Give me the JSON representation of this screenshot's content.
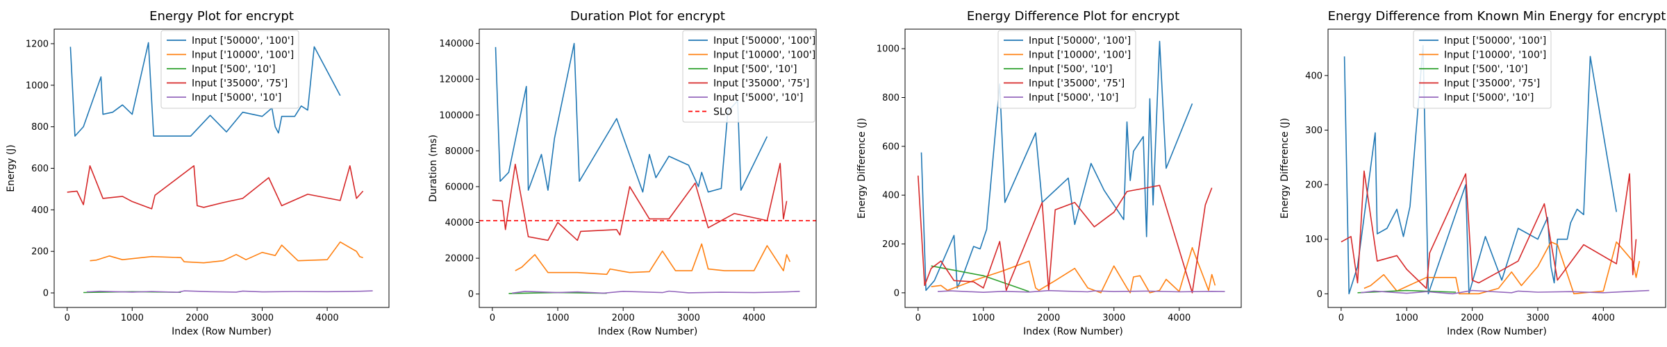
{
  "colors": {
    "s0": "#1f77b4",
    "s1": "#ff7f0e",
    "s2": "#2ca02c",
    "s3": "#d62728",
    "s4": "#9467bd",
    "slo": "#ff0000"
  },
  "chart_data": [
    {
      "type": "line",
      "title": "Energy Plot for encrypt",
      "xlabel": "Index (Row Number)",
      "ylabel": "Energy (J)",
      "xlim": [
        -200,
        4950
      ],
      "ylim": [
        -70,
        1270
      ],
      "xticks": [
        0,
        1000,
        2000,
        3000,
        4000
      ],
      "yticks": [
        0,
        200,
        400,
        600,
        800,
        1000,
        1200
      ],
      "grid": false,
      "legend": "upper-center",
      "series": [
        {
          "name": "Input ['50000', '100']",
          "color_key": "s0",
          "x": [
            50,
            120,
            250,
            520,
            550,
            700,
            850,
            1000,
            1250,
            1330,
            1900,
            2200,
            2450,
            2700,
            3000,
            3150,
            3200,
            3250,
            3300,
            3500,
            3600,
            3700,
            3800,
            4200
          ],
          "y": [
            1185,
            755,
            800,
            1040,
            860,
            870,
            905,
            860,
            1205,
            755,
            755,
            855,
            775,
            870,
            850,
            890,
            800,
            770,
            850,
            850,
            900,
            880,
            1185,
            950
          ]
        },
        {
          "name": "Input ['10000', '100']",
          "color_key": "s1",
          "x": [
            350,
            450,
            650,
            850,
            1300,
            1750,
            1800,
            2100,
            2400,
            2600,
            2750,
            3000,
            3200,
            3300,
            3550,
            4000,
            4200,
            4450,
            4500,
            4550
          ],
          "y": [
            155,
            158,
            178,
            160,
            175,
            170,
            150,
            145,
            155,
            185,
            160,
            195,
            180,
            230,
            155,
            160,
            245,
            200,
            175,
            170
          ]
        },
        {
          "name": "Input ['500', '10']",
          "color_key": "s2",
          "x": [
            250,
            1000,
            1750
          ],
          "y": [
            2,
            6,
            3
          ]
        },
        {
          "name": "Input ['35000', '75']",
          "color_key": "s3",
          "x": [
            0,
            150,
            250,
            350,
            550,
            850,
            1000,
            1300,
            1350,
            1950,
            2000,
            2100,
            2400,
            2700,
            3100,
            3300,
            3700,
            4200,
            4350,
            4450,
            4550
          ],
          "y": [
            485,
            490,
            425,
            612,
            455,
            465,
            440,
            405,
            470,
            612,
            420,
            412,
            435,
            455,
            555,
            420,
            475,
            445,
            612,
            455,
            490
          ]
        },
        {
          "name": "Input ['5000', '10']",
          "color_key": "s4",
          "x": [
            300,
            500,
            1000,
            1300,
            1700,
            1800,
            2200,
            2600,
            2700,
            3000,
            3500,
            4000,
            4500,
            4700
          ],
          "y": [
            5,
            8,
            4,
            7,
            3,
            10,
            6,
            4,
            9,
            5,
            7,
            6,
            8,
            10
          ]
        }
      ]
    },
    {
      "type": "line",
      "title": "Duration Plot for encrypt",
      "xlabel": "Index (Row Number)",
      "ylabel": "Duration (ms)",
      "xlim": [
        -200,
        4950
      ],
      "ylim": [
        -7500,
        148000
      ],
      "xticks": [
        0,
        1000,
        2000,
        3000,
        4000
      ],
      "yticks": [
        0,
        20000,
        40000,
        60000,
        80000,
        100000,
        120000,
        140000
      ],
      "grid": false,
      "legend": "upper-right",
      "slo": {
        "label": "SLO",
        "value": 41000
      },
      "series": [
        {
          "name": "Input ['50000', '100']",
          "color_key": "s0",
          "x": [
            50,
            120,
            250,
            520,
            550,
            750,
            850,
            950,
            1250,
            1330,
            1900,
            2300,
            2400,
            2500,
            2700,
            3000,
            3150,
            3200,
            3300,
            3500,
            3600,
            3750,
            3800,
            4200
          ],
          "y": [
            138000,
            63000,
            68000,
            116000,
            58000,
            78000,
            58000,
            87000,
            140000,
            63000,
            98000,
            57000,
            78000,
            65000,
            77000,
            72000,
            60000,
            68000,
            57000,
            59000,
            102000,
            108000,
            58000,
            88000
          ]
        },
        {
          "name": "Input ['10000', '100']",
          "color_key": "s1",
          "x": [
            350,
            450,
            650,
            850,
            1300,
            1750,
            1800,
            2100,
            2400,
            2600,
            2800,
            3050,
            3200,
            3300,
            3550,
            4000,
            4200,
            4450,
            4500,
            4550
          ],
          "y": [
            13000,
            15000,
            22000,
            12000,
            12000,
            11000,
            14000,
            12000,
            12500,
            24000,
            13000,
            13000,
            28000,
            14000,
            13000,
            13000,
            27000,
            13000,
            22000,
            18000
          ]
        },
        {
          "name": "Input ['500', '10']",
          "color_key": "s2",
          "x": [
            250,
            1000,
            1750
          ],
          "y": [
            300,
            800,
            400
          ]
        },
        {
          "name": "Input ['35000', '75']",
          "color_key": "s3",
          "x": [
            0,
            150,
            200,
            350,
            550,
            850,
            1000,
            1300,
            1350,
            1900,
            1950,
            2100,
            2400,
            2700,
            3100,
            3300,
            3700,
            4200,
            4400,
            4450,
            4500
          ],
          "y": [
            52500,
            52000,
            36000,
            72500,
            32000,
            30000,
            40000,
            30000,
            35000,
            36000,
            33000,
            60000,
            42000,
            42000,
            62000,
            37000,
            45000,
            41000,
            73000,
            42000,
            52000
          ]
        },
        {
          "name": "Input ['5000', '10']",
          "color_key": "s4",
          "x": [
            300,
            500,
            1000,
            1300,
            1700,
            2000,
            2600,
            2700,
            3000,
            3500,
            4000,
            4500,
            4700
          ],
          "y": [
            500,
            1500,
            800,
            1200,
            500,
            1500,
            800,
            1600,
            700,
            1000,
            800,
            1200,
            1500
          ]
        },
        {
          "name": "SLO",
          "color_key": "slo",
          "dashed": true,
          "x": [
            -200,
            4950
          ],
          "y": [
            41000,
            41000
          ]
        }
      ]
    },
    {
      "type": "line",
      "title": "Energy Difference Plot for encrypt",
      "xlabel": "Index (Row Number)",
      "ylabel": "Energy Difference (J)",
      "xlim": [
        -200,
        4950
      ],
      "ylim": [
        -60,
        1080
      ],
      "xticks": [
        0,
        1000,
        2000,
        3000,
        4000
      ],
      "yticks": [
        0,
        200,
        400,
        600,
        800,
        1000
      ],
      "grid": false,
      "legend": "upper-center",
      "series": [
        {
          "name": "Input ['50000', '100']",
          "color_key": "s0",
          "x": [
            50,
            120,
            250,
            550,
            600,
            700,
            850,
            950,
            1050,
            1250,
            1330,
            1800,
            1900,
            2300,
            2400,
            2650,
            2850,
            3150,
            3200,
            3250,
            3300,
            3450,
            3500,
            3550,
            3600,
            3700,
            3800,
            4200
          ],
          "y": [
            575,
            10,
            50,
            235,
            20,
            80,
            190,
            180,
            260,
            855,
            370,
            655,
            370,
            470,
            280,
            530,
            420,
            300,
            700,
            460,
            580,
            640,
            230,
            795,
            360,
            1030,
            510,
            775
          ]
        },
        {
          "name": "Input ['10000', '100']",
          "color_key": "s1",
          "x": [
            200,
            350,
            450,
            600,
            850,
            1300,
            1700,
            1800,
            1850,
            2100,
            2400,
            2600,
            2800,
            3000,
            3200,
            3250,
            3300,
            3400,
            3550,
            3700,
            3800,
            4000,
            4200,
            4450,
            4500,
            4550
          ],
          "y": [
            25,
            30,
            10,
            25,
            50,
            90,
            130,
            20,
            10,
            50,
            100,
            20,
            0,
            110,
            20,
            0,
            65,
            70,
            0,
            10,
            55,
            5,
            185,
            10,
            75,
            30
          ]
        },
        {
          "name": "Input ['500', '10']",
          "color_key": "s2",
          "x": [
            200,
            1000,
            1700
          ],
          "y": [
            110,
            70,
            5
          ]
        },
        {
          "name": "Input ['35000', '75']",
          "color_key": "s3",
          "x": [
            0,
            100,
            200,
            350,
            550,
            850,
            1000,
            1250,
            1350,
            1900,
            2000,
            2100,
            2400,
            2700,
            3000,
            3200,
            3700,
            4200,
            4400,
            4500
          ],
          "y": [
            480,
            30,
            100,
            130,
            50,
            45,
            20,
            210,
            10,
            370,
            10,
            340,
            370,
            270,
            330,
            415,
            440,
            0,
            360,
            430
          ]
        },
        {
          "name": "Input ['5000', '10']",
          "color_key": "s4",
          "x": [
            300,
            500,
            1000,
            1300,
            1700,
            2000,
            2600,
            2700,
            3000,
            3500,
            4000,
            4500,
            4700
          ],
          "y": [
            5,
            8,
            2,
            6,
            3,
            9,
            4,
            8,
            5,
            7,
            4,
            6,
            5
          ]
        }
      ]
    },
    {
      "type": "line",
      "title": "Energy Difference from Known Min Energy for encrypt",
      "xlabel": "Index (Row Number)",
      "ylabel": "Energy Difference (J)",
      "xlim": [
        -200,
        4950
      ],
      "ylim": [
        -25,
        485
      ],
      "xticks": [
        0,
        1000,
        2000,
        3000,
        4000
      ],
      "yticks": [
        0,
        100,
        200,
        300,
        400
      ],
      "grid": false,
      "legend": "upper-center",
      "series": [
        {
          "name": "Input ['50000', '100']",
          "color_key": "s0",
          "x": [
            50,
            120,
            250,
            520,
            550,
            700,
            850,
            950,
            1050,
            1250,
            1330,
            1900,
            1950,
            2200,
            2450,
            2700,
            3000,
            3150,
            3200,
            3250,
            3300,
            3450,
            3500,
            3600,
            3700,
            3800,
            4200
          ],
          "y": [
            435,
            0,
            50,
            295,
            110,
            120,
            155,
            105,
            160,
            455,
            0,
            200,
            0,
            105,
            25,
            120,
            100,
            140,
            50,
            20,
            100,
            100,
            130,
            155,
            145,
            435,
            150
          ]
        },
        {
          "name": "Input ['10000', '100']",
          "color_key": "s1",
          "x": [
            350,
            450,
            650,
            850,
            1300,
            1750,
            1800,
            2100,
            2400,
            2600,
            2750,
            3000,
            3200,
            3300,
            3550,
            4000,
            4200,
            4450,
            4500,
            4550
          ],
          "y": [
            10,
            15,
            35,
            5,
            30,
            30,
            0,
            0,
            10,
            40,
            15,
            50,
            95,
            90,
            0,
            5,
            95,
            60,
            30,
            60
          ]
        },
        {
          "name": "Input ['500', '10']",
          "color_key": "s2",
          "x": [
            250,
            1000,
            1750
          ],
          "y": [
            2,
            6,
            3
          ]
        },
        {
          "name": "Input ['35000', '75']",
          "color_key": "s3",
          "x": [
            0,
            150,
            250,
            350,
            550,
            850,
            1000,
            1300,
            1350,
            1900,
            2000,
            2100,
            2400,
            2700,
            3100,
            3300,
            3700,
            4200,
            4400,
            4450,
            4500
          ],
          "y": [
            95,
            105,
            20,
            225,
            60,
            70,
            45,
            10,
            75,
            220,
            25,
            20,
            40,
            60,
            165,
            25,
            90,
            55,
            220,
            35,
            100
          ]
        },
        {
          "name": "Input ['5000', '10']",
          "color_key": "s4",
          "x": [
            300,
            500,
            1000,
            1300,
            1700,
            2000,
            2600,
            2700,
            3000,
            3500,
            4000,
            4500,
            4700
          ],
          "y": [
            2,
            5,
            1,
            4,
            0,
            6,
            2,
            5,
            3,
            4,
            2,
            5,
            6
          ]
        }
      ]
    }
  ]
}
